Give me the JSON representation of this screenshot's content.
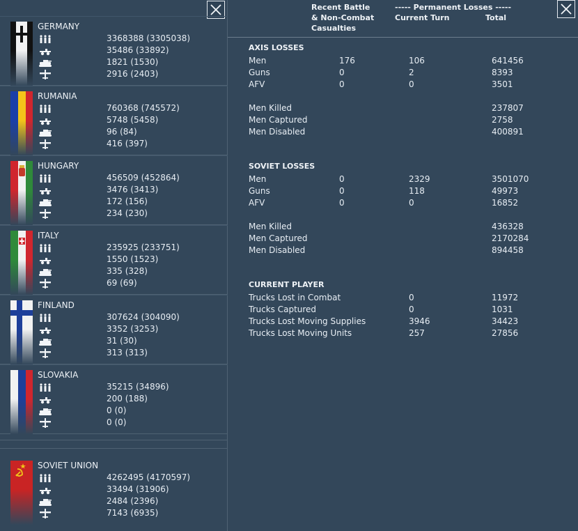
{
  "header": {
    "recent_line1": "Recent Battle",
    "recent_line2": "& Non-Combat",
    "recent_line3": "Casualties",
    "permanent": "----- Permanent Losses -----",
    "current_turn": "Current Turn",
    "total": "Total"
  },
  "countries": [
    {
      "name": "GERMANY",
      "men": "3368388 (3305038)",
      "guns": "35486 (33892)",
      "afv": "1821 (1530)",
      "aircraft": "2916 (2403)"
    },
    {
      "name": "RUMANIA",
      "men": "760368 (745572)",
      "guns": "5748 (5458)",
      "afv": "96 (84)",
      "aircraft": "416 (397)"
    },
    {
      "name": "HUNGARY",
      "men": "456509 (452864)",
      "guns": "3476 (3413)",
      "afv": "172 (156)",
      "aircraft": "234 (230)"
    },
    {
      "name": "ITALY",
      "men": "235925 (233751)",
      "guns": "1550 (1523)",
      "afv": "335 (328)",
      "aircraft": "69 (69)"
    },
    {
      "name": "FINLAND",
      "men": "307624 (304090)",
      "guns": "3352 (3253)",
      "afv": "31 (30)",
      "aircraft": "313 (313)"
    },
    {
      "name": "SLOVAKIA",
      "men": "35215 (34896)",
      "guns": "200 (188)",
      "afv": "0 (0)",
      "aircraft": "0 (0)"
    },
    {
      "name": "SOVIET UNION",
      "men": "4262495 (4170597)",
      "guns": "33494 (31906)",
      "afv": "2484 (2396)",
      "aircraft": "7143 (6935)"
    }
  ],
  "axis": {
    "title": "AXIS LOSSES",
    "rows": [
      {
        "label": "Men",
        "recent": "176",
        "turn": "106",
        "total": "641456"
      },
      {
        "label": "Guns",
        "recent": "0",
        "turn": "2",
        "total": "8393"
      },
      {
        "label": "AFV",
        "recent": "0",
        "turn": "0",
        "total": "3501"
      }
    ],
    "detail": [
      {
        "label": "Men Killed",
        "total": "237807"
      },
      {
        "label": "Men Captured",
        "total": "2758"
      },
      {
        "label": "Men Disabled",
        "total": "400891"
      }
    ]
  },
  "soviet": {
    "title": "SOVIET LOSSES",
    "rows": [
      {
        "label": "Men",
        "recent": "0",
        "turn": "2329",
        "total": "3501070"
      },
      {
        "label": "Guns",
        "recent": "0",
        "turn": "118",
        "total": "49973"
      },
      {
        "label": "AFV",
        "recent": "0",
        "turn": "0",
        "total": "16852"
      }
    ],
    "detail": [
      {
        "label": "Men Killed",
        "total": "436328"
      },
      {
        "label": "Men Captured",
        "total": "2170284"
      },
      {
        "label": "Men Disabled",
        "total": "894458"
      }
    ]
  },
  "player": {
    "title": "CURRENT PLAYER",
    "rows": [
      {
        "label": "Trucks Lost in Combat",
        "turn": "0",
        "total": "11972"
      },
      {
        "label": "Trucks Captured",
        "turn": "0",
        "total": "1031"
      },
      {
        "label": "Trucks Lost Moving Supplies",
        "turn": "3946",
        "total": "34423"
      },
      {
        "label": "Trucks Lost Moving Units",
        "turn": "257",
        "total": "27856"
      }
    ]
  },
  "icons": {
    "close": "close-icon",
    "men": "infantry-icon",
    "guns": "artillery-icon",
    "afv": "tank-icon",
    "aircraft": "aircraft-icon"
  },
  "colors": {
    "background": "#33475a",
    "divider": "#4f6273",
    "text": "#e8eef4"
  }
}
